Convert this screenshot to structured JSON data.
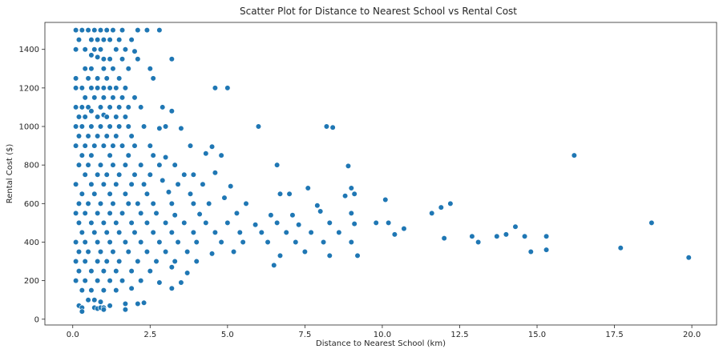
{
  "chart_data": {
    "type": "scatter",
    "title": "Scatter Plot for Distance to Nearest School vs Rental Cost",
    "xlabel": "Distance to Nearest School (km)",
    "ylabel": "Rental Cost ($)",
    "xlim": [
      -0.9,
      20.8
    ],
    "ylim": [
      -30,
      1540
    ],
    "xticks": [
      0.0,
      2.5,
      5.0,
      7.5,
      10.0,
      12.5,
      15.0,
      17.5,
      20.0
    ],
    "xtick_labels": [
      "0.0",
      "2.5",
      "5.0",
      "7.5",
      "10.0",
      "12.5",
      "15.0",
      "17.5",
      "20.0"
    ],
    "yticks": [
      0,
      200,
      400,
      600,
      800,
      1000,
      1200,
      1400
    ],
    "ytick_labels": [
      "0",
      "200",
      "400",
      "600",
      "800",
      "1000",
      "1200",
      "1400"
    ],
    "grid": false,
    "point_color": "#1f77b4",
    "series": [
      {
        "points": [
          [
            0.1,
            1500
          ],
          [
            0.3,
            1500
          ],
          [
            0.5,
            1500
          ],
          [
            0.7,
            1500
          ],
          [
            0.9,
            1500
          ],
          [
            1.1,
            1500
          ],
          [
            1.3,
            1500
          ],
          [
            1.6,
            1500
          ],
          [
            2.1,
            1500
          ],
          [
            2.4,
            1500
          ],
          [
            2.8,
            1500
          ],
          [
            0.2,
            1450
          ],
          [
            0.6,
            1450
          ],
          [
            0.8,
            1450
          ],
          [
            1.0,
            1450
          ],
          [
            1.2,
            1450
          ],
          [
            1.5,
            1450
          ],
          [
            1.9,
            1450
          ],
          [
            0.1,
            1400
          ],
          [
            0.4,
            1400
          ],
          [
            0.7,
            1400
          ],
          [
            0.9,
            1400
          ],
          [
            1.4,
            1400
          ],
          [
            1.7,
            1400
          ],
          [
            2.0,
            1390
          ],
          [
            0.6,
            1370
          ],
          [
            0.8,
            1360
          ],
          [
            1.0,
            1350
          ],
          [
            1.2,
            1350
          ],
          [
            1.6,
            1350
          ],
          [
            2.1,
            1350
          ],
          [
            3.2,
            1350
          ],
          [
            0.4,
            1300
          ],
          [
            0.6,
            1300
          ],
          [
            1.0,
            1300
          ],
          [
            1.3,
            1300
          ],
          [
            1.8,
            1300
          ],
          [
            2.5,
            1300
          ],
          [
            0.1,
            1250
          ],
          [
            0.5,
            1250
          ],
          [
            0.8,
            1250
          ],
          [
            1.1,
            1250
          ],
          [
            1.5,
            1250
          ],
          [
            2.6,
            1250
          ],
          [
            0.1,
            1200
          ],
          [
            0.3,
            1200
          ],
          [
            0.6,
            1200
          ],
          [
            0.8,
            1200
          ],
          [
            1.0,
            1200
          ],
          [
            1.2,
            1200
          ],
          [
            1.4,
            1200
          ],
          [
            1.7,
            1200
          ],
          [
            4.6,
            1200
          ],
          [
            5.0,
            1200
          ],
          [
            0.4,
            1150
          ],
          [
            0.7,
            1150
          ],
          [
            1.0,
            1150
          ],
          [
            1.3,
            1150
          ],
          [
            1.6,
            1150
          ],
          [
            2.0,
            1150
          ],
          [
            0.1,
            1100
          ],
          [
            0.3,
            1100
          ],
          [
            0.5,
            1100
          ],
          [
            0.9,
            1100
          ],
          [
            1.2,
            1100
          ],
          [
            1.5,
            1100
          ],
          [
            1.8,
            1100
          ],
          [
            2.2,
            1100
          ],
          [
            2.9,
            1100
          ],
          [
            0.6,
            1080
          ],
          [
            1.0,
            1060
          ],
          [
            3.2,
            1080
          ],
          [
            0.2,
            1050
          ],
          [
            0.4,
            1050
          ],
          [
            0.8,
            1050
          ],
          [
            1.1,
            1050
          ],
          [
            1.4,
            1050
          ],
          [
            1.7,
            1050
          ],
          [
            0.1,
            1000
          ],
          [
            0.3,
            1000
          ],
          [
            0.6,
            1000
          ],
          [
            0.9,
            1000
          ],
          [
            1.2,
            1000
          ],
          [
            1.5,
            1000
          ],
          [
            1.8,
            1000
          ],
          [
            2.3,
            1000
          ],
          [
            2.8,
            990
          ],
          [
            3.0,
            1000
          ],
          [
            3.5,
            990
          ],
          [
            6.0,
            1000
          ],
          [
            8.2,
            1000
          ],
          [
            8.4,
            995
          ],
          [
            0.2,
            950
          ],
          [
            0.5,
            950
          ],
          [
            0.8,
            950
          ],
          [
            1.1,
            950
          ],
          [
            1.4,
            950
          ],
          [
            1.9,
            950
          ],
          [
            0.1,
            900
          ],
          [
            0.4,
            900
          ],
          [
            0.7,
            900
          ],
          [
            1.0,
            900
          ],
          [
            1.3,
            900
          ],
          [
            1.6,
            900
          ],
          [
            2.0,
            900
          ],
          [
            2.5,
            900
          ],
          [
            3.8,
            900
          ],
          [
            4.5,
            895
          ],
          [
            0.3,
            850
          ],
          [
            0.6,
            850
          ],
          [
            1.2,
            850
          ],
          [
            1.8,
            850
          ],
          [
            2.6,
            850
          ],
          [
            3.0,
            840
          ],
          [
            4.3,
            860
          ],
          [
            4.8,
            850
          ],
          [
            16.2,
            850
          ],
          [
            0.2,
            800
          ],
          [
            0.5,
            800
          ],
          [
            0.9,
            800
          ],
          [
            1.3,
            800
          ],
          [
            1.7,
            800
          ],
          [
            2.2,
            800
          ],
          [
            2.8,
            800
          ],
          [
            3.3,
            800
          ],
          [
            6.6,
            800
          ],
          [
            8.9,
            795
          ],
          [
            0.4,
            750
          ],
          [
            0.8,
            750
          ],
          [
            1.1,
            750
          ],
          [
            1.5,
            750
          ],
          [
            2.0,
            750
          ],
          [
            2.5,
            750
          ],
          [
            3.6,
            750
          ],
          [
            3.9,
            750
          ],
          [
            4.6,
            760
          ],
          [
            0.1,
            700
          ],
          [
            0.6,
            700
          ],
          [
            1.0,
            700
          ],
          [
            1.4,
            700
          ],
          [
            1.9,
            700
          ],
          [
            2.3,
            700
          ],
          [
            2.9,
            720
          ],
          [
            3.4,
            700
          ],
          [
            4.2,
            700
          ],
          [
            5.1,
            690
          ],
          [
            7.6,
            680
          ],
          [
            9.0,
            680
          ],
          [
            0.3,
            650
          ],
          [
            0.7,
            650
          ],
          [
            1.2,
            650
          ],
          [
            1.7,
            650
          ],
          [
            2.4,
            650
          ],
          [
            3.1,
            660
          ],
          [
            3.8,
            650
          ],
          [
            4.9,
            630
          ],
          [
            6.7,
            650
          ],
          [
            7.0,
            650
          ],
          [
            8.8,
            640
          ],
          [
            9.1,
            650
          ],
          [
            0.2,
            600
          ],
          [
            0.5,
            600
          ],
          [
            0.9,
            600
          ],
          [
            1.3,
            600
          ],
          [
            1.8,
            600
          ],
          [
            2.1,
            600
          ],
          [
            2.6,
            600
          ],
          [
            3.2,
            600
          ],
          [
            3.9,
            600
          ],
          [
            4.4,
            600
          ],
          [
            5.6,
            600
          ],
          [
            7.9,
            590
          ],
          [
            10.1,
            620
          ],
          [
            12.2,
            600
          ],
          [
            0.1,
            550
          ],
          [
            0.4,
            550
          ],
          [
            0.8,
            550
          ],
          [
            1.2,
            550
          ],
          [
            1.6,
            550
          ],
          [
            2.2,
            550
          ],
          [
            2.7,
            550
          ],
          [
            3.3,
            540
          ],
          [
            4.1,
            545
          ],
          [
            5.3,
            550
          ],
          [
            6.4,
            540
          ],
          [
            7.1,
            540
          ],
          [
            8.0,
            560
          ],
          [
            9.0,
            550
          ],
          [
            11.6,
            550
          ],
          [
            11.9,
            580
          ],
          [
            0.2,
            500
          ],
          [
            0.6,
            500
          ],
          [
            1.0,
            500
          ],
          [
            1.4,
            500
          ],
          [
            1.9,
            500
          ],
          [
            2.4,
            500
          ],
          [
            3.0,
            500
          ],
          [
            3.6,
            500
          ],
          [
            4.3,
            500
          ],
          [
            5.0,
            500
          ],
          [
            5.9,
            490
          ],
          [
            6.6,
            500
          ],
          [
            7.3,
            490
          ],
          [
            8.3,
            500
          ],
          [
            9.1,
            495
          ],
          [
            9.8,
            500
          ],
          [
            10.2,
            500
          ],
          [
            10.7,
            470
          ],
          [
            18.7,
            500
          ],
          [
            0.3,
            450
          ],
          [
            0.7,
            450
          ],
          [
            1.1,
            450
          ],
          [
            1.5,
            450
          ],
          [
            2.0,
            450
          ],
          [
            2.6,
            450
          ],
          [
            3.2,
            450
          ],
          [
            3.9,
            450
          ],
          [
            4.6,
            450
          ],
          [
            5.4,
            450
          ],
          [
            6.1,
            450
          ],
          [
            6.9,
            450
          ],
          [
            7.7,
            450
          ],
          [
            8.6,
            450
          ],
          [
            10.4,
            440
          ],
          [
            13.7,
            430
          ],
          [
            14.0,
            440
          ],
          [
            14.3,
            480
          ],
          [
            14.6,
            430
          ],
          [
            15.3,
            430
          ],
          [
            0.1,
            400
          ],
          [
            0.4,
            400
          ],
          [
            0.8,
            400
          ],
          [
            1.2,
            400
          ],
          [
            1.7,
            400
          ],
          [
            2.2,
            400
          ],
          [
            2.8,
            400
          ],
          [
            3.4,
            400
          ],
          [
            4.0,
            400
          ],
          [
            4.8,
            400
          ],
          [
            5.5,
            400
          ],
          [
            6.3,
            400
          ],
          [
            7.2,
            400
          ],
          [
            8.1,
            400
          ],
          [
            9.0,
            400
          ],
          [
            12.0,
            420
          ],
          [
            12.9,
            430
          ],
          [
            13.1,
            400
          ],
          [
            0.2,
            350
          ],
          [
            0.5,
            350
          ],
          [
            0.9,
            350
          ],
          [
            1.3,
            350
          ],
          [
            1.8,
            350
          ],
          [
            2.4,
            350
          ],
          [
            3.0,
            350
          ],
          [
            3.7,
            350
          ],
          [
            4.5,
            340
          ],
          [
            5.2,
            350
          ],
          [
            6.7,
            330
          ],
          [
            7.5,
            350
          ],
          [
            8.3,
            330
          ],
          [
            14.8,
            350
          ],
          [
            15.3,
            360
          ],
          [
            17.7,
            370
          ],
          [
            0.1,
            300
          ],
          [
            0.4,
            300
          ],
          [
            0.8,
            300
          ],
          [
            1.1,
            300
          ],
          [
            1.5,
            300
          ],
          [
            2.1,
            300
          ],
          [
            2.7,
            300
          ],
          [
            3.3,
            300
          ],
          [
            4.0,
            300
          ],
          [
            9.2,
            330
          ],
          [
            19.9,
            320
          ],
          [
            0.2,
            250
          ],
          [
            0.6,
            250
          ],
          [
            1.0,
            250
          ],
          [
            1.4,
            250
          ],
          [
            1.9,
            250
          ],
          [
            2.5,
            250
          ],
          [
            3.2,
            270
          ],
          [
            3.7,
            240
          ],
          [
            6.5,
            280
          ],
          [
            0.1,
            200
          ],
          [
            0.4,
            200
          ],
          [
            0.8,
            200
          ],
          [
            1.2,
            200
          ],
          [
            1.6,
            200
          ],
          [
            2.2,
            200
          ],
          [
            2.8,
            190
          ],
          [
            3.5,
            190
          ],
          [
            0.3,
            150
          ],
          [
            0.6,
            150
          ],
          [
            1.0,
            150
          ],
          [
            1.4,
            150
          ],
          [
            1.9,
            160
          ],
          [
            3.2,
            160
          ],
          [
            0.5,
            100
          ],
          [
            0.7,
            100
          ],
          [
            0.9,
            90
          ],
          [
            0.2,
            70
          ],
          [
            0.3,
            60
          ],
          [
            0.7,
            60
          ],
          [
            0.8,
            55
          ],
          [
            0.9,
            60
          ],
          [
            1.0,
            60
          ],
          [
            1.2,
            70
          ],
          [
            1.7,
            80
          ],
          [
            2.1,
            80
          ],
          [
            2.3,
            85
          ],
          [
            1.7,
            50
          ],
          [
            0.3,
            40
          ],
          [
            1.0,
            50
          ]
        ]
      }
    ]
  }
}
